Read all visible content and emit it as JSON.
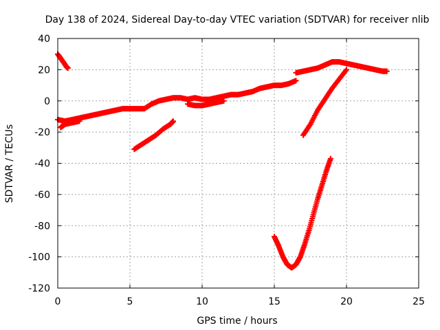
{
  "chart_data": {
    "type": "scatter",
    "title": "Day 138 of 2024, Sidereal Day-to-day VTEC variation (SDTVAR) for receiver nlib",
    "xlabel": "GPS time / hours",
    "ylabel": "SDTVAR / TECUs",
    "xlim": [
      0,
      25
    ],
    "ylim": [
      -120,
      40
    ],
    "xticks": [
      0,
      5,
      10,
      15,
      20,
      25
    ],
    "yticks": [
      -120,
      -100,
      -80,
      -60,
      -40,
      -20,
      0,
      20,
      40
    ],
    "grid": true,
    "marker": "plus",
    "color": "#ff0000",
    "series": [
      {
        "values": [
          [
            0.0,
            30
          ],
          [
            0.3,
            26
          ],
          [
            0.6,
            22
          ],
          [
            0.7,
            21
          ]
        ]
      },
      {
        "values": [
          [
            0.0,
            -12
          ],
          [
            0.5,
            -13
          ],
          [
            1.0,
            -12
          ],
          [
            1.5,
            -11
          ],
          [
            2.0,
            -10
          ],
          [
            2.5,
            -9
          ],
          [
            3.0,
            -8
          ],
          [
            3.5,
            -7
          ],
          [
            4.0,
            -6
          ],
          [
            4.5,
            -5
          ],
          [
            5.0,
            -5
          ],
          [
            5.5,
            -5
          ],
          [
            6.0,
            -5
          ],
          [
            6.5,
            -2
          ],
          [
            7.0,
            0
          ],
          [
            7.5,
            1
          ],
          [
            8.0,
            2
          ],
          [
            8.5,
            2
          ],
          [
            9.0,
            1
          ],
          [
            9.5,
            2
          ],
          [
            10.0,
            1
          ],
          [
            10.5,
            1
          ],
          [
            11.0,
            2
          ],
          [
            11.5,
            3
          ],
          [
            12.0,
            4
          ],
          [
            12.5,
            4
          ],
          [
            13.0,
            5
          ],
          [
            13.5,
            6
          ],
          [
            14.0,
            8
          ],
          [
            14.5,
            9
          ],
          [
            15.0,
            10
          ],
          [
            15.5,
            10
          ],
          [
            16.0,
            11
          ],
          [
            16.5,
            13
          ]
        ]
      },
      {
        "values": [
          [
            0.2,
            -17
          ],
          [
            0.5,
            -15
          ],
          [
            1.0,
            -14
          ],
          [
            1.5,
            -13
          ]
        ]
      },
      {
        "values": [
          [
            5.3,
            -31
          ],
          [
            5.8,
            -28
          ],
          [
            6.3,
            -25
          ],
          [
            6.8,
            -22
          ],
          [
            7.3,
            -18
          ],
          [
            7.8,
            -15
          ],
          [
            8.0,
            -13
          ]
        ]
      },
      {
        "values": [
          [
            9.0,
            -2
          ],
          [
            9.5,
            -3
          ],
          [
            10.0,
            -3
          ],
          [
            10.5,
            -2
          ],
          [
            11.0,
            -1
          ],
          [
            11.5,
            0
          ]
        ]
      },
      {
        "values": [
          [
            16.5,
            18
          ],
          [
            17.0,
            19
          ],
          [
            17.5,
            20
          ],
          [
            18.0,
            21
          ],
          [
            18.5,
            23
          ],
          [
            19.0,
            25
          ],
          [
            19.5,
            25
          ],
          [
            20.0,
            24
          ],
          [
            20.5,
            23
          ],
          [
            21.0,
            22
          ],
          [
            21.5,
            21
          ],
          [
            22.0,
            20
          ],
          [
            22.5,
            19
          ],
          [
            22.8,
            19
          ]
        ]
      },
      {
        "values": [
          [
            17.0,
            -22
          ],
          [
            17.5,
            -15
          ],
          [
            18.0,
            -6
          ],
          [
            18.5,
            1
          ],
          [
            19.0,
            8
          ],
          [
            19.5,
            14
          ],
          [
            20.0,
            20
          ]
        ]
      },
      {
        "values": [
          [
            15.0,
            -87
          ],
          [
            15.3,
            -93
          ],
          [
            15.6,
            -100
          ],
          [
            15.9,
            -105
          ],
          [
            16.2,
            -107
          ],
          [
            16.5,
            -105
          ],
          [
            16.8,
            -100
          ],
          [
            17.1,
            -92
          ],
          [
            17.4,
            -83
          ],
          [
            17.7,
            -73
          ],
          [
            18.0,
            -63
          ],
          [
            18.3,
            -54
          ],
          [
            18.6,
            -45
          ],
          [
            18.9,
            -37
          ]
        ]
      }
    ]
  }
}
